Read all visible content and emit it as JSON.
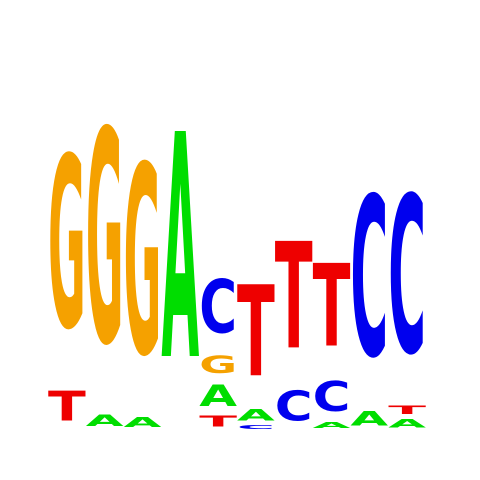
{
  "colors": {
    "A": "#00dd00",
    "C": "#0000ee",
    "G": "#f5a100",
    "T": "#ee0000"
  },
  "chart_data": {
    "type": "sequence-logo",
    "alphabet": [
      "A",
      "C",
      "G",
      "T"
    ],
    "positions": [
      {
        "index": 1,
        "stack": [
          {
            "base": "T",
            "bits": 0.25
          },
          {
            "base": "G",
            "bits": 1.45
          }
        ]
      },
      {
        "index": 2,
        "stack": [
          {
            "base": "A",
            "bits": 0.1
          },
          {
            "base": "G",
            "bits": 1.8
          }
        ]
      },
      {
        "index": 3,
        "stack": [
          {
            "base": "A",
            "bits": 0.08
          },
          {
            "base": "G",
            "bits": 1.6
          }
        ]
      },
      {
        "index": 4,
        "stack": [
          {
            "base": "A",
            "bits": 1.9
          }
        ]
      },
      {
        "index": 5,
        "stack": [
          {
            "base": "T",
            "bits": 0.09
          },
          {
            "base": "A",
            "bits": 0.18
          },
          {
            "base": "G",
            "bits": 0.15
          },
          {
            "base": "C",
            "bits": 0.45
          }
        ]
      },
      {
        "index": 6,
        "stack": [
          {
            "base": "C",
            "bits": 0.03
          },
          {
            "base": "A",
            "bits": 0.1
          },
          {
            "base": "T",
            "bits": 0.77
          }
        ]
      },
      {
        "index": 7,
        "stack": [
          {
            "base": "C",
            "bits": 0.25
          },
          {
            "base": "T",
            "bits": 0.9
          }
        ]
      },
      {
        "index": 8,
        "stack": [
          {
            "base": "A",
            "bits": 0.05
          },
          {
            "base": "C",
            "bits": 0.25
          },
          {
            "base": "T",
            "bits": 0.7
          }
        ]
      },
      {
        "index": 9,
        "stack": [
          {
            "base": "A",
            "bits": 0.12
          },
          {
            "base": "C",
            "bits": 1.35
          }
        ]
      },
      {
        "index": 10,
        "stack": [
          {
            "base": "A",
            "bits": 0.07
          },
          {
            "base": "T",
            "bits": 0.07
          },
          {
            "base": "C",
            "bits": 1.33
          }
        ]
      }
    ]
  }
}
